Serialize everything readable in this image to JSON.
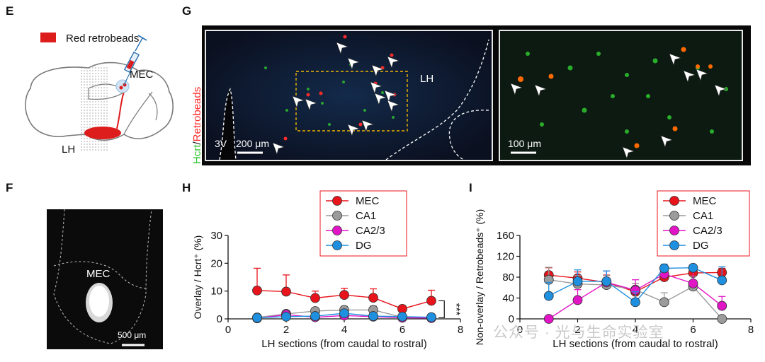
{
  "panels": {
    "E": {
      "label": "E",
      "legend_text": "Red retrobeads",
      "mec_label": "MEC",
      "lh_label": "LH",
      "colors": {
        "beads": "#dd1c1c",
        "brain_outline": "#7a7a7a",
        "syringe": "#2a6fb0"
      }
    },
    "F": {
      "label": "F",
      "region_label": "MEC",
      "scalebar_label": "500 μm"
    },
    "G": {
      "label": "G",
      "stain_green": "Hcrt",
      "stain_slash": "/",
      "stain_red": "Retrobeads",
      "lh_label": "LH",
      "ventricle_label": "3V",
      "left_scalebar_label": "200 μm",
      "right_scalebar_label": "100 μm",
      "colors": {
        "green": "#2fc72f",
        "red": "#ff2a2a",
        "bg": "#0a0a1a",
        "box": "#f0b400"
      }
    },
    "H": {
      "label": "H"
    },
    "I": {
      "label": "I"
    }
  },
  "watermark": {
    "text": "公众号 · 光与生命实验室"
  },
  "chart_data": [
    {
      "id": "H",
      "type": "line",
      "title": "",
      "xlabel": "LH sections (from caudal to rostral)",
      "ylabel": "Overlay / Hcrt⁺ (%)",
      "xlim": [
        0,
        8
      ],
      "ylim": [
        0,
        30
      ],
      "xticks": [
        0,
        2,
        4,
        6,
        8
      ],
      "yticks": [
        0,
        10,
        20,
        30
      ],
      "legend_position": "top",
      "annotation": "***",
      "series": [
        {
          "name": "MEC",
          "color": "#e8141b",
          "x": [
            1,
            2,
            3,
            4,
            5,
            6,
            7
          ],
          "y": [
            10.2,
            9.8,
            7.5,
            8.6,
            7.6,
            3.6,
            6.5
          ],
          "err": [
            8,
            6,
            2.5,
            2.4,
            3.2,
            1.2,
            3.8
          ]
        },
        {
          "name": "CA1",
          "color": "#9b9b9b",
          "x": [
            1,
            2,
            3,
            4,
            5,
            6,
            7
          ],
          "y": [
            0.5,
            1.8,
            2.8,
            3.2,
            3.2,
            0.6,
            0.6
          ],
          "err": [
            0.4,
            0.7,
            1.2,
            1.3,
            1.4,
            0.4,
            0.4
          ]
        },
        {
          "name": "CA2/3",
          "color": "#e215c6",
          "x": [
            1,
            2,
            3,
            4,
            5,
            6,
            7
          ],
          "y": [
            0.2,
            1.5,
            0.6,
            1.2,
            0.8,
            0.4,
            0.3
          ],
          "err": [
            0.2,
            0.6,
            0.4,
            0.6,
            0.5,
            0.3,
            0.2
          ]
        },
        {
          "name": "DG",
          "color": "#1f8fe0",
          "x": [
            1,
            2,
            3,
            4,
            5,
            6,
            7
          ],
          "y": [
            0.4,
            0.8,
            1.0,
            2.0,
            1.0,
            0.8,
            0.6
          ],
          "err": [
            0.3,
            0.4,
            0.5,
            0.8,
            0.5,
            0.4,
            0.3
          ]
        }
      ]
    },
    {
      "id": "I",
      "type": "line",
      "title": "",
      "xlabel": "LH sections (from caudal to rostral)",
      "ylabel": "Non-overlay / Retrobeads⁺ (%)",
      "xlim": [
        0,
        8
      ],
      "ylim": [
        0,
        160
      ],
      "xticks": [
        0,
        2,
        4,
        6,
        8
      ],
      "yticks": [
        0,
        40,
        80,
        120,
        160
      ],
      "legend_position": "top-right",
      "series": [
        {
          "name": "MEC",
          "color": "#e8141b",
          "x": [
            1,
            2,
            3,
            4,
            5,
            6,
            7
          ],
          "y": [
            84,
            78,
            70,
            52,
            80,
            88,
            89
          ],
          "err": [
            14,
            12,
            14,
            16,
            12,
            10,
            8
          ]
        },
        {
          "name": "CA1",
          "color": "#9b9b9b",
          "x": [
            1,
            2,
            3,
            4,
            5,
            6,
            7
          ],
          "y": [
            75,
            67,
            65,
            56,
            32,
            62,
            0
          ],
          "err": [
            24,
            16,
            18,
            12,
            18,
            20,
            0
          ]
        },
        {
          "name": "CA2/3",
          "color": "#e215c6",
          "x": [
            1,
            2,
            3,
            4,
            5,
            6,
            7
          ],
          "y": [
            0,
            36,
            70,
            55,
            86,
            68,
            25
          ],
          "err": [
            0,
            20,
            22,
            20,
            12,
            24,
            18
          ]
        },
        {
          "name": "DG",
          "color": "#1f8fe0",
          "x": [
            1,
            2,
            3,
            4,
            5,
            6,
            7
          ],
          "y": [
            44,
            72,
            72,
            32,
            97,
            98,
            74
          ],
          "err": [
            26,
            22,
            20,
            20,
            8,
            6,
            26
          ]
        }
      ]
    }
  ]
}
